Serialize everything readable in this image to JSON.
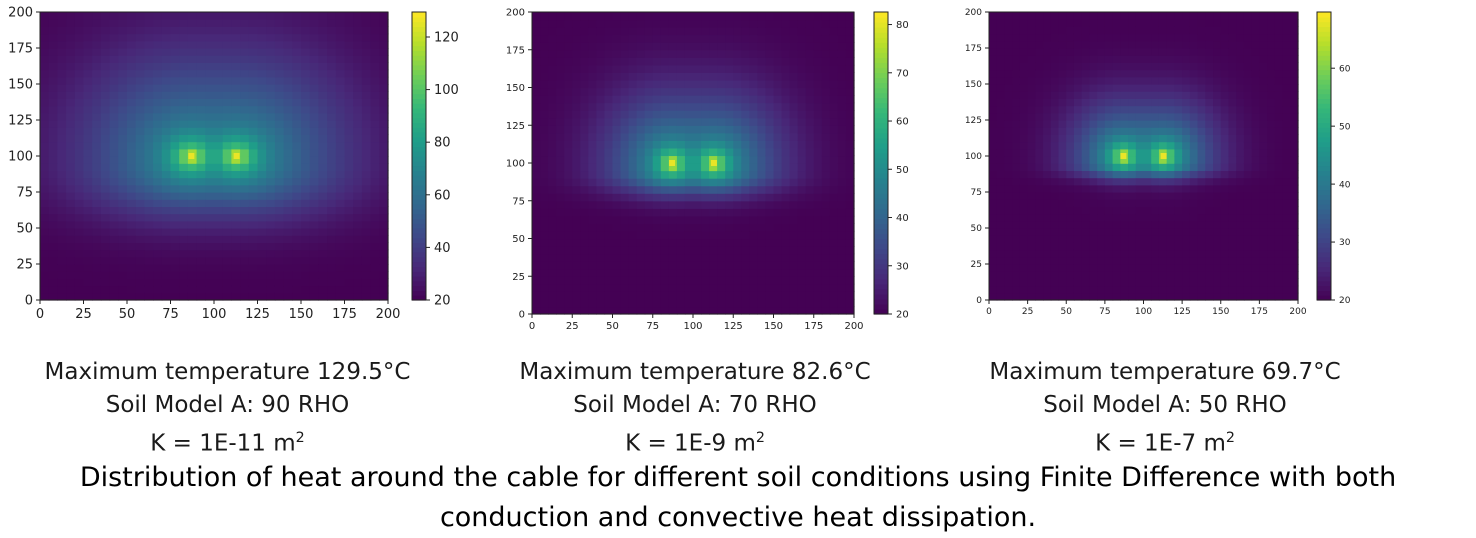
{
  "chart_data": [
    {
      "type": "heatmap",
      "xlim": [
        0,
        200
      ],
      "ylim": [
        0,
        200
      ],
      "xticks": [
        "0",
        "25",
        "50",
        "75",
        "100",
        "125",
        "150",
        "175",
        "200"
      ],
      "yticks": [
        "0",
        "25",
        "50",
        "75",
        "100",
        "125",
        "150",
        "175",
        "200"
      ],
      "colorbar": {
        "range": [
          20,
          129.5
        ],
        "ticks": [
          "20",
          "40",
          "60",
          "80",
          "100",
          "120"
        ],
        "tick_values": [
          20,
          40,
          60,
          80,
          100,
          120
        ]
      },
      "sources": [
        {
          "x": 87,
          "y": 100
        },
        {
          "x": 113,
          "y": 100
        }
      ],
      "max_temperature_c": 129.5,
      "spread": 1.0,
      "caption": {
        "line1": "Maximum temperature 129.5°C",
        "line2": "Soil Model A: 90 RHO",
        "line3_prefix": "K = 1E-11 m",
        "line3_sup": "2"
      }
    },
    {
      "type": "heatmap",
      "xlim": [
        0,
        200
      ],
      "ylim": [
        0,
        200
      ],
      "xticks": [
        "0",
        "25",
        "50",
        "75",
        "100",
        "125",
        "150",
        "175",
        "200"
      ],
      "yticks": [
        "0",
        "25",
        "50",
        "75",
        "100",
        "125",
        "150",
        "175",
        "200"
      ],
      "colorbar": {
        "range": [
          20,
          82.6
        ],
        "ticks": [
          "20",
          "30",
          "40",
          "50",
          "60",
          "70",
          "80"
        ],
        "tick_values": [
          20,
          30,
          40,
          50,
          60,
          70,
          80
        ]
      },
      "sources": [
        {
          "x": 87,
          "y": 100
        },
        {
          "x": 113,
          "y": 100
        }
      ],
      "max_temperature_c": 82.6,
      "spread": 0.6,
      "caption": {
        "line1": "Maximum temperature 82.6°C",
        "line2": "Soil Model A: 70 RHO",
        "line3_prefix": "K = 1E-9 m",
        "line3_sup": "2"
      }
    },
    {
      "type": "heatmap",
      "xlim": [
        0,
        200
      ],
      "ylim": [
        0,
        200
      ],
      "xticks": [
        "0",
        "25",
        "50",
        "75",
        "100",
        "125",
        "150",
        "175",
        "200"
      ],
      "yticks": [
        "0",
        "25",
        "50",
        "75",
        "100",
        "125",
        "150",
        "175",
        "200"
      ],
      "colorbar": {
        "range": [
          20,
          69.7
        ],
        "ticks": [
          "20",
          "30",
          "40",
          "50",
          "60"
        ],
        "tick_values": [
          20,
          30,
          40,
          50,
          60
        ]
      },
      "sources": [
        {
          "x": 87,
          "y": 100
        },
        {
          "x": 113,
          "y": 100
        }
      ],
      "max_temperature_c": 69.7,
      "spread": 0.45,
      "caption": {
        "line1": "Maximum temperature 69.7°C",
        "line2": "Soil Model A: 50 RHO",
        "line3_prefix": "K = 1E-7 m",
        "line3_sup": "2"
      }
    }
  ],
  "figure_caption": {
    "line1": "Distribution of heat around the cable for different soil conditions using Finite Difference with both",
    "line2": "conduction and convective heat dissipation."
  },
  "colors": {
    "viridis": [
      "#440154",
      "#482878",
      "#3e4989",
      "#31688e",
      "#26828e",
      "#1f9e89",
      "#35b779",
      "#6ece58",
      "#b5de2b",
      "#fde725"
    ]
  }
}
